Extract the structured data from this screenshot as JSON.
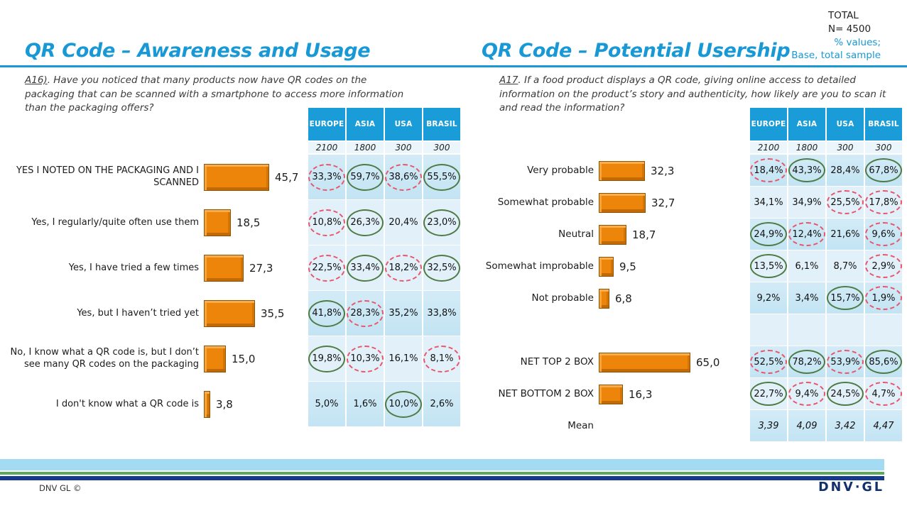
{
  "meta": {
    "total_label": "TOTAL",
    "n_label": "N= 4500",
    "note_line1": "% values;",
    "note_line2": "Base, total sample"
  },
  "columns": [
    "EUROPE",
    "ASIA",
    "USA",
    "BRASIL"
  ],
  "bases": [
    "2100",
    "1800",
    "300",
    "300"
  ],
  "left": {
    "title": "QR Code – Awareness and Usage",
    "question_prefix": "A16)",
    "question_rest": ". Have you noticed that many products now have QR codes on the packaging that can be scanned with a smartphone to access more information than the packaging offers?",
    "rows": [
      {
        "type": "bar",
        "label": "YES I NOTED ON THE PACKAGING AND I SCANNED",
        "value": "45,7",
        "num": 45.7,
        "cells": [
          {
            "v": "33,3%",
            "mark": "red"
          },
          {
            "v": "59,7%",
            "mark": "green"
          },
          {
            "v": "38,6%",
            "mark": "red"
          },
          {
            "v": "55,5%",
            "mark": "green"
          }
        ]
      },
      {
        "type": "bar",
        "label": "Yes, I regularly/quite often use them",
        "value": "18,5",
        "num": 18.5,
        "cells": [
          {
            "v": "10,8%",
            "mark": "red"
          },
          {
            "v": "26,3%",
            "mark": "green"
          },
          {
            "v": "20,4%",
            "mark": ""
          },
          {
            "v": "23,0%",
            "mark": "green"
          }
        ]
      },
      {
        "type": "bar",
        "label": "Yes, I have tried a few times",
        "value": "27,3",
        "num": 27.3,
        "cells": [
          {
            "v": "22,5%",
            "mark": "red"
          },
          {
            "v": "33,4%",
            "mark": "green"
          },
          {
            "v": "18,2%",
            "mark": "red"
          },
          {
            "v": "32,5%",
            "mark": "green"
          }
        ]
      },
      {
        "type": "bar",
        "label": "Yes, but I haven’t tried yet",
        "value": "35,5",
        "num": 35.5,
        "cells": [
          {
            "v": "41,8%",
            "mark": "green"
          },
          {
            "v": "28,3%",
            "mark": "red"
          },
          {
            "v": "35,2%",
            "mark": ""
          },
          {
            "v": "33,8%",
            "mark": ""
          }
        ]
      },
      {
        "type": "bar",
        "label": "No, I know what a QR code is, but I don’t see many QR codes on the packaging",
        "value": "15,0",
        "num": 15.0,
        "cells": [
          {
            "v": "19,8%",
            "mark": "green"
          },
          {
            "v": "10,3%",
            "mark": "red"
          },
          {
            "v": "16,1%",
            "mark": ""
          },
          {
            "v": "8,1%",
            "mark": "red"
          }
        ]
      },
      {
        "type": "bar",
        "label": "I don't know what a QR code is",
        "value": "3,8",
        "num": 3.8,
        "cells": [
          {
            "v": "5,0%",
            "mark": ""
          },
          {
            "v": "1,6%",
            "mark": ""
          },
          {
            "v": "10,0%",
            "mark": "green"
          },
          {
            "v": "2,6%",
            "mark": ""
          }
        ]
      }
    ]
  },
  "right": {
    "title": "QR Code – Potential Usership",
    "question_prefix": "A17",
    "question_rest": ". If a food product displays a QR code, giving online access to detailed information on the product’s story and authenticity, how likely are you to scan it and read the information?",
    "rows": [
      {
        "type": "bar",
        "label": "Very probable",
        "value": "32,3",
        "num": 32.3,
        "cells": [
          {
            "v": "18,4%",
            "mark": "red"
          },
          {
            "v": "43,3%",
            "mark": "green"
          },
          {
            "v": "28,4%",
            "mark": ""
          },
          {
            "v": "67,8%",
            "mark": "green"
          }
        ]
      },
      {
        "type": "bar",
        "label": "Somewhat probable",
        "value": "32,7",
        "num": 32.7,
        "cells": [
          {
            "v": "34,1%",
            "mark": ""
          },
          {
            "v": "34,9%",
            "mark": ""
          },
          {
            "v": "25,5%",
            "mark": "red"
          },
          {
            "v": "17,8%",
            "mark": "red"
          }
        ]
      },
      {
        "type": "bar",
        "label": "Neutral",
        "value": "18,7",
        "num": 18.7,
        "cells": [
          {
            "v": "24,9%",
            "mark": "green"
          },
          {
            "v": "12,4%",
            "mark": "red"
          },
          {
            "v": "21,6%",
            "mark": ""
          },
          {
            "v": "9,6%",
            "mark": "red"
          }
        ]
      },
      {
        "type": "bar",
        "label": "Somewhat improbable",
        "value": "9,5",
        "num": 9.5,
        "cells": [
          {
            "v": "13,5%",
            "mark": "green"
          },
          {
            "v": "6,1%",
            "mark": ""
          },
          {
            "v": "8,7%",
            "mark": ""
          },
          {
            "v": "2,9%",
            "mark": "red"
          }
        ]
      },
      {
        "type": "bar",
        "label": "Not probable",
        "value": "6,8",
        "num": 6.8,
        "cells": [
          {
            "v": "9,2%",
            "mark": ""
          },
          {
            "v": "3,4%",
            "mark": ""
          },
          {
            "v": "15,7%",
            "mark": "green"
          },
          {
            "v": "1,9%",
            "mark": "red"
          }
        ]
      },
      {
        "type": "spacer",
        "label": "",
        "value": "",
        "num": 0,
        "cells": [
          {
            "v": "",
            "mark": ""
          },
          {
            "v": "",
            "mark": ""
          },
          {
            "v": "",
            "mark": ""
          },
          {
            "v": "",
            "mark": ""
          }
        ]
      },
      {
        "type": "bar",
        "label": "NET TOP 2 BOX",
        "value": "65,0",
        "num": 65.0,
        "cells": [
          {
            "v": "52,5%",
            "mark": "red"
          },
          {
            "v": "78,2%",
            "mark": "green"
          },
          {
            "v": "53,9%",
            "mark": "red"
          },
          {
            "v": "85,6%",
            "mark": "green"
          }
        ]
      },
      {
        "type": "bar",
        "label": "NET BOTTOM 2 BOX",
        "value": "16,3",
        "num": 16.3,
        "cells": [
          {
            "v": "22,7%",
            "mark": "green"
          },
          {
            "v": "9,4%",
            "mark": "red"
          },
          {
            "v": "24,5%",
            "mark": "green"
          },
          {
            "v": "4,7%",
            "mark": "red"
          }
        ]
      },
      {
        "type": "mean",
        "label": "Mean",
        "value": "",
        "num": 0,
        "cells": [
          {
            "v": "3,39",
            "mark": ""
          },
          {
            "v": "4,09",
            "mark": ""
          },
          {
            "v": "3,42",
            "mark": ""
          },
          {
            "v": "4,47",
            "mark": ""
          }
        ]
      }
    ]
  },
  "footer": {
    "copyright": "DNV GL ©",
    "logo": "DNV·GL"
  },
  "colors": {
    "title_blue": "#1899D6",
    "table_header_blue": "#1A9CD8",
    "bar_orange": "#ED850A",
    "cell_blue_medium": "#C3E4F3",
    "cell_blue_light": "#E2F1F9",
    "mark_higher_green": "#4E7B44",
    "mark_lower_red": "#E9556B",
    "stripe_lightblue": "#A3DCF2",
    "stripe_green": "#5CA95B",
    "stripe_navy": "#15398E"
  },
  "chart_data": [
    {
      "type": "bar",
      "orientation": "horizontal",
      "title": "QR Code – Awareness and Usage",
      "question": "A16). Have you noticed that many products now have QR codes on the packaging that can be scanned with a smartphone to access more information than the packaging offers?",
      "total_n": 4500,
      "note": "% values; Base, total sample",
      "categories": [
        "YES I NOTED ON THE PACKAGING AND I SCANNED",
        "Yes, I regularly/quite often use them",
        "Yes, I have tried a few times",
        "Yes, but I haven’t tried yet",
        "No, I know what a QR code is, but I don’t see many QR codes on the packaging",
        "I don't know what a QR code is"
      ],
      "values": [
        45.7,
        18.5,
        27.3,
        35.5,
        15.0,
        3.8
      ],
      "regional_table": {
        "columns": [
          "EUROPE",
          "ASIA",
          "USA",
          "BRASIL"
        ],
        "bases": [
          2100,
          1800,
          300,
          300
        ],
        "rows": [
          [
            33.3,
            59.7,
            38.6,
            55.5
          ],
          [
            10.8,
            26.3,
            20.4,
            23.0
          ],
          [
            22.5,
            33.4,
            18.2,
            32.5
          ],
          [
            41.8,
            28.3,
            35.2,
            33.8
          ],
          [
            19.8,
            10.3,
            16.1,
            8.1
          ],
          [
            5.0,
            1.6,
            10.0,
            2.6
          ]
        ]
      }
    },
    {
      "type": "bar",
      "orientation": "horizontal",
      "title": "QR Code – Potential Usership",
      "question": "A17. If a food product displays a QR code, giving online access to detailed information on the product’s story and authenticity, how likely are you to scan it and read the information?",
      "total_n": 4500,
      "note": "% values; Base, total sample",
      "categories": [
        "Very probable",
        "Somewhat probable",
        "Neutral",
        "Somewhat improbable",
        "Not probable",
        "NET TOP 2 BOX",
        "NET BOTTOM 2 BOX"
      ],
      "values": [
        32.3,
        32.7,
        18.7,
        9.5,
        6.8,
        65.0,
        16.3
      ],
      "mean_row": {
        "label": "Mean",
        "values": [
          3.39,
          4.09,
          3.42,
          4.47
        ]
      },
      "regional_table": {
        "columns": [
          "EUROPE",
          "ASIA",
          "USA",
          "BRASIL"
        ],
        "bases": [
          2100,
          1800,
          300,
          300
        ],
        "rows": [
          [
            18.4,
            43.3,
            28.4,
            67.8
          ],
          [
            34.1,
            34.9,
            25.5,
            17.8
          ],
          [
            24.9,
            12.4,
            21.6,
            9.6
          ],
          [
            13.5,
            6.1,
            8.7,
            2.9
          ],
          [
            9.2,
            3.4,
            15.7,
            1.9
          ],
          [
            52.5,
            78.2,
            53.9,
            85.6
          ],
          [
            22.7,
            9.4,
            24.5,
            4.7
          ]
        ]
      }
    }
  ]
}
